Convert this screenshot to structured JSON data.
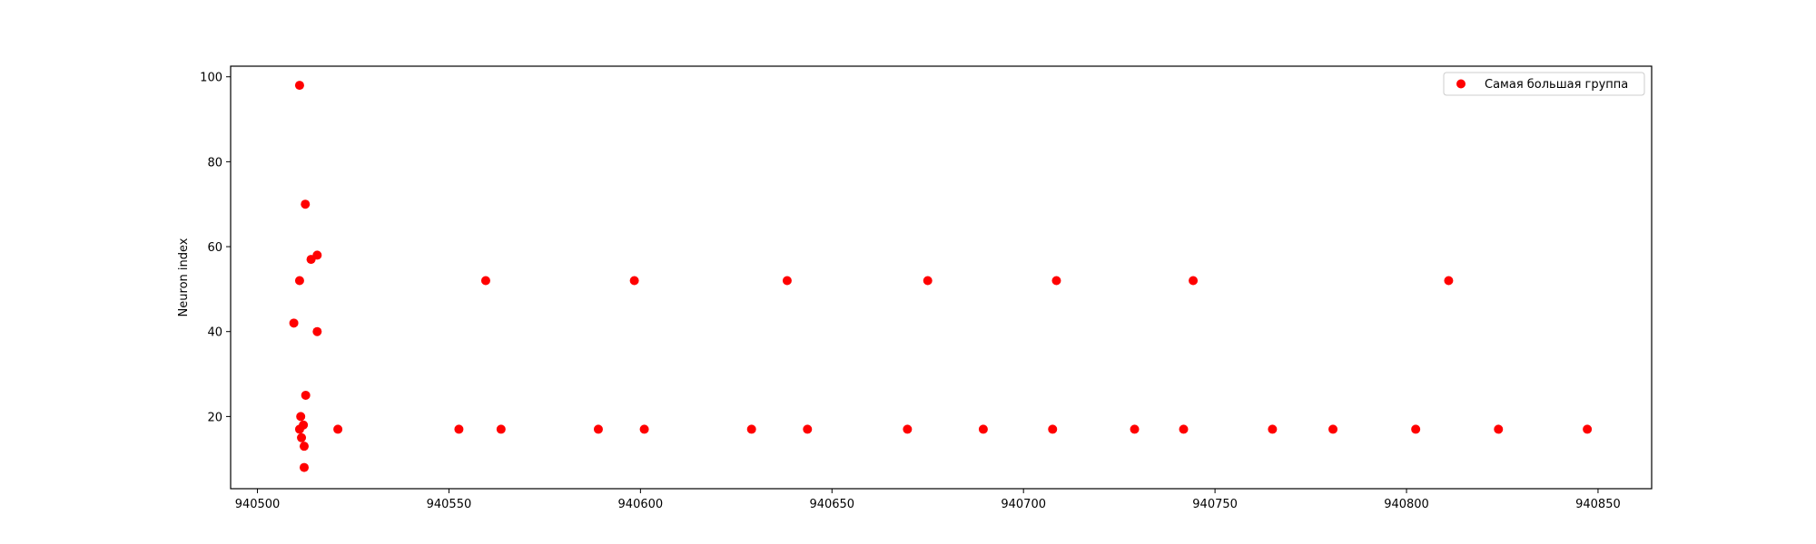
{
  "colors": {
    "series": "#ff0000",
    "axes": "#000000",
    "legend_border": "#cccccc"
  },
  "chart_data": {
    "type": "scatter",
    "title": "",
    "xlabel": "",
    "ylabel": "Neuron index",
    "xlim": [
      940493,
      940864
    ],
    "ylim": [
      3,
      102.5
    ],
    "xticks": [
      940500,
      940550,
      940600,
      940650,
      940700,
      940750,
      940800,
      940850
    ],
    "yticks": [
      20,
      40,
      60,
      80,
      100
    ],
    "grid": false,
    "legend_position": "top-right",
    "series": [
      {
        "name": "Самая большая группа",
        "color": "#ff0000",
        "marker": "circle",
        "points": [
          [
            940509.5,
            42
          ],
          [
            940511.0,
            98
          ],
          [
            940511.0,
            52
          ],
          [
            940511.0,
            17
          ],
          [
            940511.3,
            20
          ],
          [
            940511.5,
            15
          ],
          [
            940512.0,
            18
          ],
          [
            940512.2,
            13
          ],
          [
            940512.2,
            8
          ],
          [
            940512.5,
            70
          ],
          [
            940512.6,
            25
          ],
          [
            940514.0,
            57
          ],
          [
            940515.6,
            58
          ],
          [
            940515.6,
            40
          ],
          [
            940521.0,
            17
          ],
          [
            940552.6,
            17
          ],
          [
            940559.6,
            52
          ],
          [
            940563.6,
            17
          ],
          [
            940589.0,
            17
          ],
          [
            940598.4,
            52
          ],
          [
            940601.0,
            17
          ],
          [
            940629.0,
            17
          ],
          [
            940638.3,
            52
          ],
          [
            940643.6,
            17
          ],
          [
            940669.7,
            17
          ],
          [
            940675.0,
            52
          ],
          [
            940689.5,
            17
          ],
          [
            940707.6,
            17
          ],
          [
            940708.6,
            52
          ],
          [
            940729.0,
            17
          ],
          [
            940741.8,
            17
          ],
          [
            940744.3,
            52
          ],
          [
            940765.0,
            17
          ],
          [
            940780.8,
            17
          ],
          [
            940802.4,
            17
          ],
          [
            940811.0,
            52
          ],
          [
            940824.0,
            17
          ],
          [
            940847.2,
            17
          ]
        ]
      }
    ]
  }
}
